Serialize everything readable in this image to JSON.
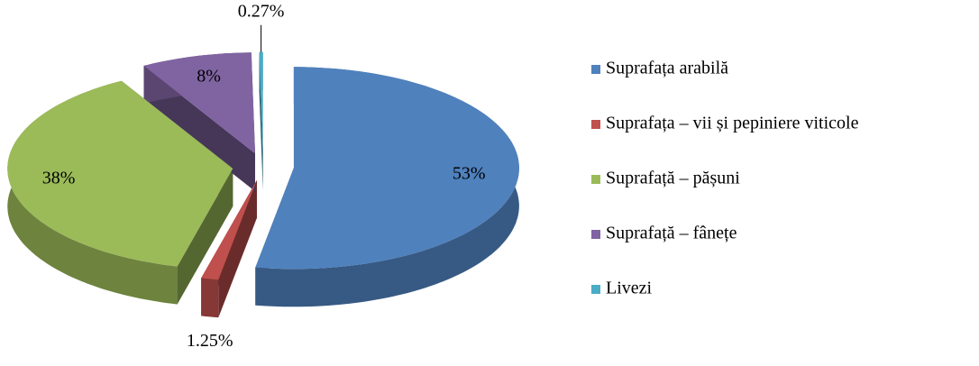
{
  "chart_data": {
    "type": "pie",
    "categories": [
      "Suprafața arabilă",
      "Suprafața – vii și pepiniere viticole",
      "Suprafață – pășuni",
      "Suprafață – fânețe",
      "Livezi"
    ],
    "values": [
      53,
      1.25,
      38,
      8,
      0.27
    ],
    "value_labels": [
      "53%",
      "1.25%",
      "38%",
      "8%",
      "0.27%"
    ],
    "colors": [
      "#4f81bd",
      "#c0504d",
      "#9bbb59",
      "#8064a2",
      "#4bacc6"
    ],
    "legend": "right"
  }
}
